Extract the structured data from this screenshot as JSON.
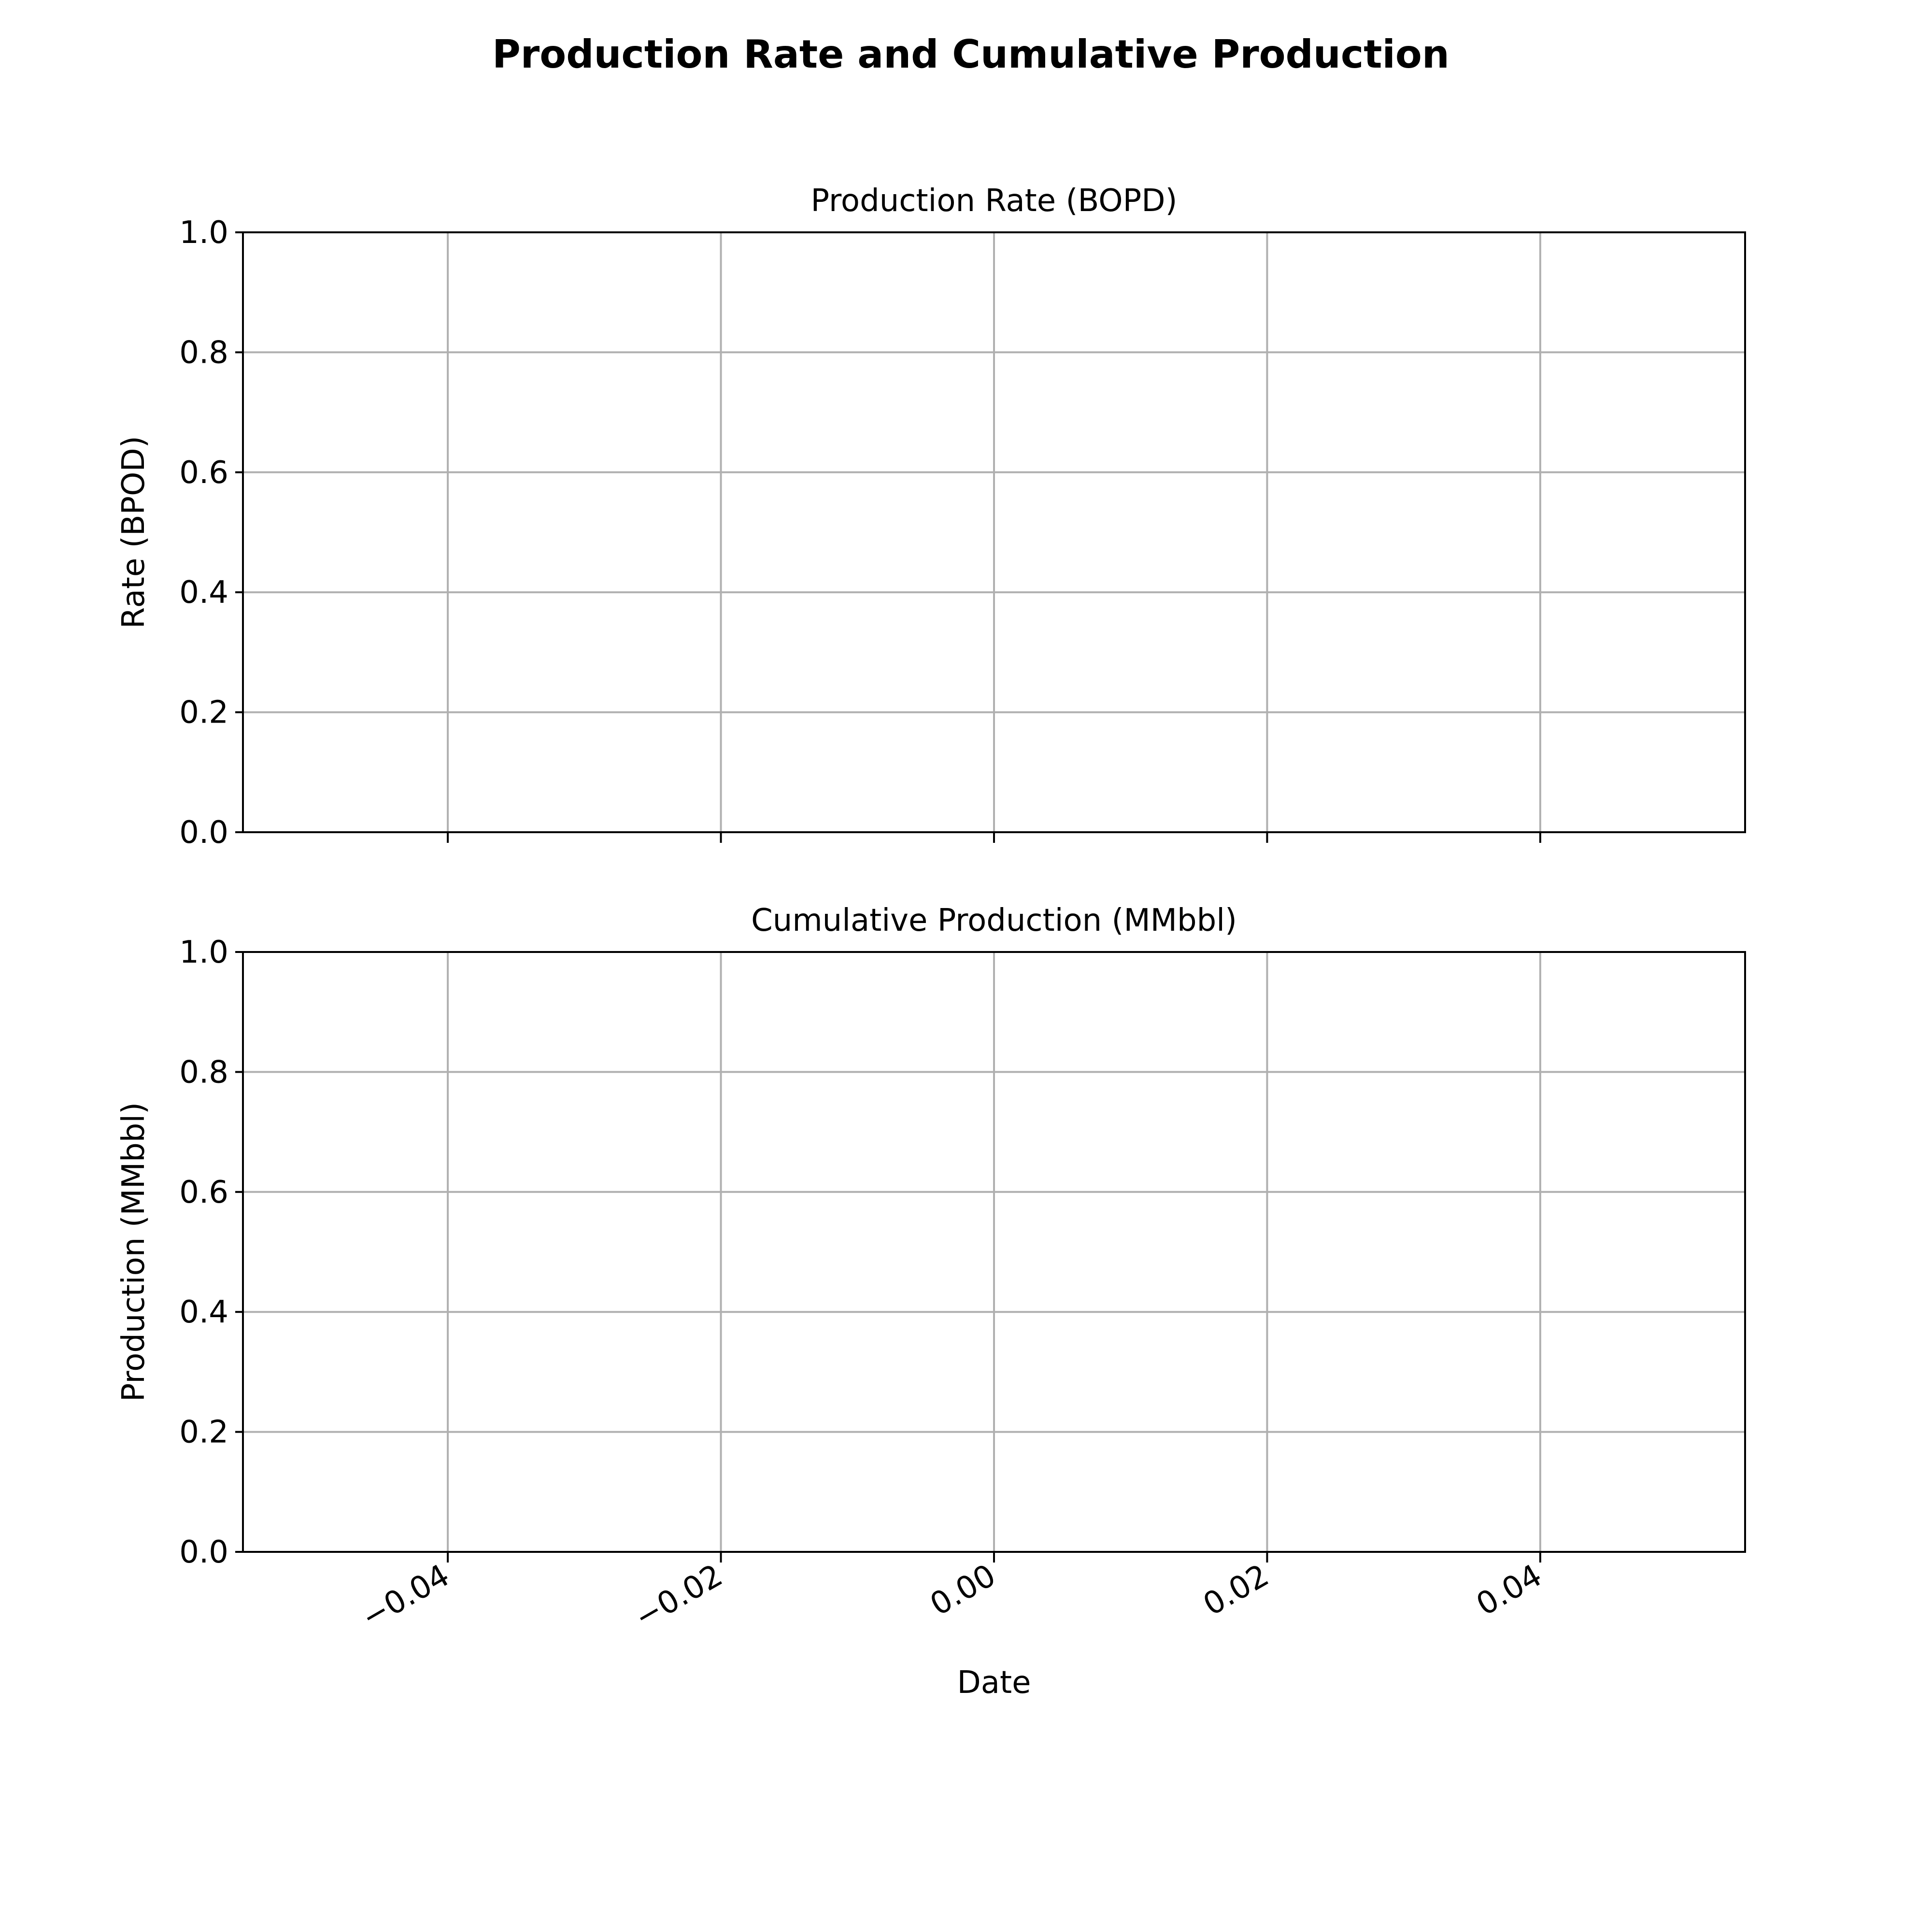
{
  "figure": {
    "title": "Production Rate and Cumulative Production"
  },
  "colors": {
    "grid": "#b0b0b0",
    "frame": "#000000",
    "text": "#000000",
    "background": "#ffffff"
  },
  "chart_data": [
    {
      "type": "line",
      "title": "Production Rate (BOPD)",
      "xlabel": "",
      "ylabel": "Rate (BPOD)",
      "xlim": [
        -0.055,
        0.055
      ],
      "ylim": [
        0,
        1
      ],
      "x_ticks": [
        -0.04,
        -0.02,
        0.0,
        0.02,
        0.04
      ],
      "x_tick_labels": [],
      "y_ticks": [
        0.0,
        0.2,
        0.4,
        0.6,
        0.8,
        1.0
      ],
      "y_tick_labels": [
        "0.0",
        "0.2",
        "0.4",
        "0.6",
        "0.8",
        "1.0"
      ],
      "grid": true,
      "series": []
    },
    {
      "type": "line",
      "title": "Cumulative Production (MMbbl)",
      "xlabel": "Date",
      "ylabel": "Production (MMbbl)",
      "xlim": [
        -0.055,
        0.055
      ],
      "ylim": [
        0,
        1
      ],
      "x_ticks": [
        -0.04,
        -0.02,
        0.0,
        0.02,
        0.04
      ],
      "x_tick_labels": [
        "−0.04",
        "−0.02",
        "0.00",
        "0.02",
        "0.04"
      ],
      "y_ticks": [
        0.0,
        0.2,
        0.4,
        0.6,
        0.8,
        1.0
      ],
      "y_tick_labels": [
        "0.0",
        "0.2",
        "0.4",
        "0.6",
        "0.8",
        "1.0"
      ],
      "grid": true,
      "series": []
    }
  ]
}
